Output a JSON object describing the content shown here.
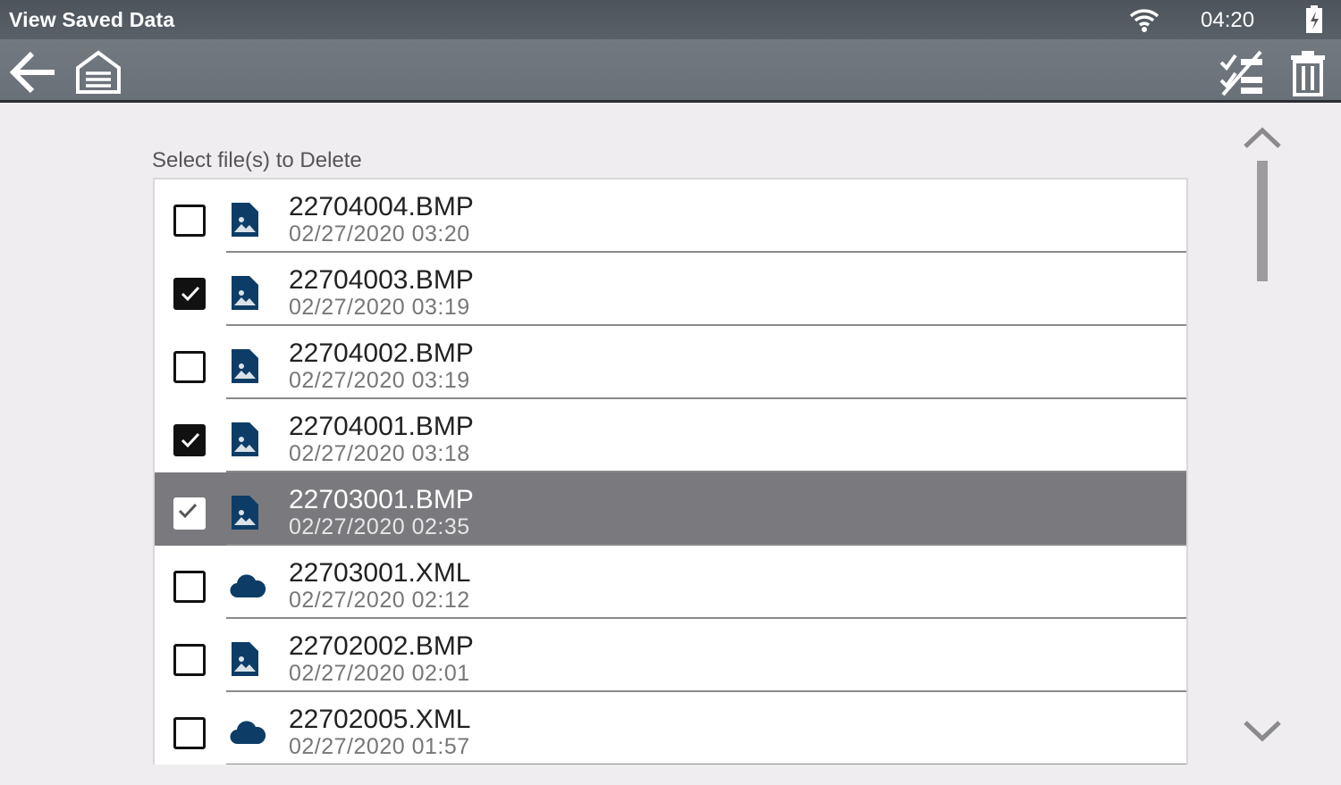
{
  "status_bar": {
    "title": "View Saved Data",
    "time": "04:20",
    "icons": [
      "wifi-icon",
      "battery-charging-icon"
    ]
  },
  "toolbar": {
    "left": [
      "back-arrow-icon",
      "home-icon"
    ],
    "right": [
      "select-all-toggle-icon",
      "trash-icon"
    ]
  },
  "main": {
    "label": "Select file(s) to Delete",
    "files": [
      {
        "name": "22704004.BMP",
        "date": "02/27/2020 03:20",
        "type": "image",
        "checked": false,
        "highlighted": false
      },
      {
        "name": "22704003.BMP",
        "date": "02/27/2020 03:19",
        "type": "image",
        "checked": true,
        "highlighted": false
      },
      {
        "name": "22704002.BMP",
        "date": "02/27/2020 03:19",
        "type": "image",
        "checked": false,
        "highlighted": false
      },
      {
        "name": "22704001.BMP",
        "date": "02/27/2020 03:18",
        "type": "image",
        "checked": true,
        "highlighted": false
      },
      {
        "name": "22703001.BMP",
        "date": "02/27/2020 02:35",
        "type": "image",
        "checked": true,
        "highlighted": true
      },
      {
        "name": "22703001.XML",
        "date": "02/27/2020 02:12",
        "type": "cloud",
        "checked": false,
        "highlighted": false
      },
      {
        "name": "22702002.BMP",
        "date": "02/27/2020 02:01",
        "type": "image",
        "checked": false,
        "highlighted": false
      },
      {
        "name": "22702005.XML",
        "date": "02/27/2020 01:57",
        "type": "cloud",
        "checked": false,
        "highlighted": false
      }
    ]
  },
  "colors": {
    "file_icon": "#0d3d66",
    "highlight": "#7a797d"
  }
}
